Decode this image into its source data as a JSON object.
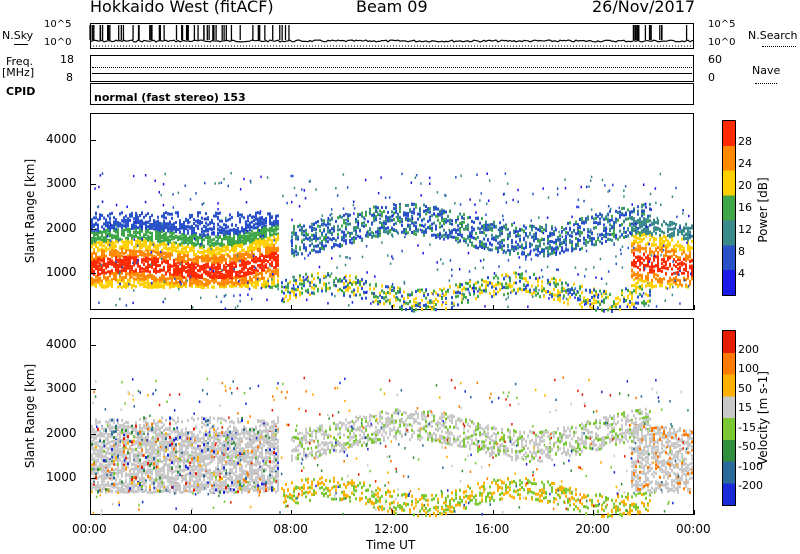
{
  "header": {
    "title": "Hokkaido West (fitACF)",
    "beam": "Beam 09",
    "date": "26/Nov/2017"
  },
  "top_panels": {
    "nsky_label": "N.Sky",
    "nsky_top": "10^5",
    "nsky_bottom": "10^0",
    "nsearch_label": "N.Search",
    "nsearch_top": "10^5",
    "nsearch_bottom": "10^0",
    "freq_label": "Freq.",
    "freq_unit": "[MHz]",
    "freq_top": "18",
    "freq_bottom": "8",
    "nave_label": "Nave",
    "nave_top": "60",
    "nave_bottom": "0",
    "cpid_label": "CPID",
    "cpid_text": "normal (fast stereo) 153"
  },
  "chart_data": [
    {
      "type": "heatmap",
      "name": "power-panel",
      "ylabel": "Slant Range [km]",
      "xlabel": "",
      "x_ticks": [
        "00:00",
        "04:00",
        "08:00",
        "12:00",
        "16:00",
        "20:00",
        "00:00"
      ],
      "y_ticks": [
        1000,
        2000,
        3000,
        4000
      ],
      "ylim": [
        180,
        4600
      ],
      "colorbar_label": "Power [dB]",
      "colorbar_ticks": [
        4,
        8,
        12,
        16,
        20,
        24,
        28
      ],
      "colorbar_colors": [
        "#1a1ae6",
        "#2a52c8",
        "#3a8a8c",
        "#3fa64a",
        "#ffd000",
        "#ff8a00",
        "#ff2a00"
      ],
      "series": [
        {
          "time_hours": [
            0,
            2,
            4,
            6,
            7.5
          ],
          "range_center_km": [
            1150,
            1100,
            1100,
            1250,
            1300
          ],
          "peak_db": 28
        },
        {
          "time_hours": [
            9,
            11,
            13,
            15,
            17,
            19,
            21
          ],
          "range_center_km": [
            1800,
            2000,
            2300,
            2350,
            2200,
            2000,
            2300
          ],
          "peak_db": 16
        },
        {
          "time_hours": [
            10,
            12,
            14,
            16,
            18
          ],
          "range_center_km": [
            600,
            700,
            900,
            700,
            500
          ],
          "peak_db": 20
        }
      ]
    },
    {
      "type": "heatmap",
      "name": "velocity-panel",
      "ylabel": "Slant Range [km]",
      "xlabel": "Time UT",
      "x_ticks": [
        "00:00",
        "04:00",
        "08:00",
        "12:00",
        "16:00",
        "20:00",
        "00:00"
      ],
      "y_ticks": [
        1000,
        2000,
        3000,
        4000
      ],
      "ylim": [
        180,
        4600
      ],
      "colorbar_label": "Velocity [m s-1]",
      "colorbar_ticks": [
        200,
        100,
        50,
        15,
        -15,
        -50,
        -100,
        -200
      ],
      "colorbar_colors": [
        "#1a2ad6",
        "#2a6a9a",
        "#2f8f3f",
        "#7ac832",
        "#c8c8c8",
        "#ffb000",
        "#ff7a00",
        "#e61e00"
      ]
    }
  ]
}
